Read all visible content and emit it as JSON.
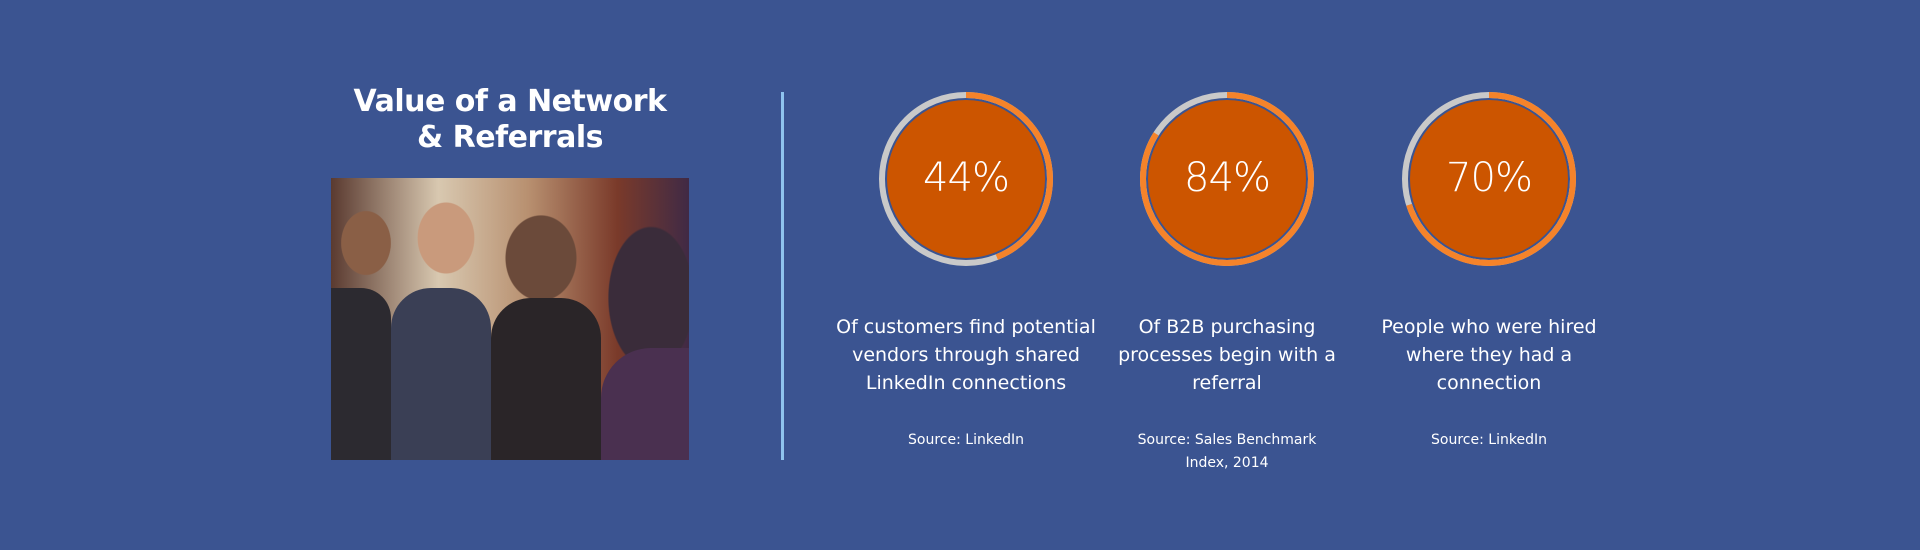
{
  "title": {
    "line1": "Value of a Network",
    "line2": "& Referrals"
  },
  "photo": {
    "icon": "business-handshake-photo"
  },
  "colors": {
    "background": "#3b5491",
    "fill": "#cc5500",
    "ring": "#f5832a",
    "ring_track": "#c9c9c9",
    "divider": "#8fc3ee"
  },
  "stats": [
    {
      "percent": 44,
      "label": "44%",
      "description": "Of customers find potential vendors through shared LinkedIn connections",
      "source": "Source: LinkedIn"
    },
    {
      "percent": 84,
      "label": "84%",
      "description": "Of B2B purchasing processes begin with a referral",
      "source": "Source: Sales Benchmark Index, 2014"
    },
    {
      "percent": 70,
      "label": "70%",
      "description": "People who were hired where they had a connection",
      "source": "Source: LinkedIn"
    }
  ]
}
